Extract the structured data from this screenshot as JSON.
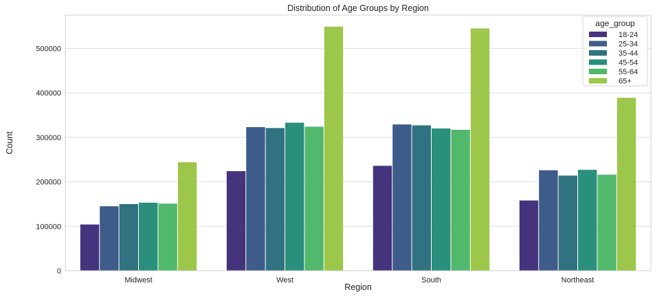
{
  "chart_data": {
    "type": "bar",
    "title": "Distribution of Age Groups by Region",
    "xlabel": "Region",
    "ylabel": "Count",
    "categories": [
      "Midwest",
      "West",
      "South",
      "Northeast"
    ],
    "ylim": [
      0,
      575000
    ],
    "yticks": [
      0,
      100000,
      200000,
      300000,
      400000,
      500000
    ],
    "ytick_labels": [
      "0",
      "100000",
      "200000",
      "300000",
      "400000",
      "500000"
    ],
    "grid": true,
    "legend": {
      "title": "age_group",
      "placement": "top-right"
    },
    "series": [
      {
        "name": "18-24",
        "color": "#46337e",
        "values": [
          104000,
          224000,
          236000,
          158000
        ]
      },
      {
        "name": "25-34",
        "color": "#3e5c8a",
        "values": [
          145000,
          323000,
          329000,
          226000
        ]
      },
      {
        "name": "35-44",
        "color": "#30727f",
        "values": [
          150000,
          321000,
          327000,
          214000
        ]
      },
      {
        "name": "45-54",
        "color": "#2a8f7c",
        "values": [
          153000,
          333000,
          320000,
          227000
        ]
      },
      {
        "name": "55-64",
        "color": "#52b86c",
        "values": [
          151000,
          324000,
          317000,
          216000
        ]
      },
      {
        "name": "65+",
        "color": "#9cc74a",
        "values": [
          244000,
          549000,
          545000,
          389000
        ]
      }
    ]
  }
}
